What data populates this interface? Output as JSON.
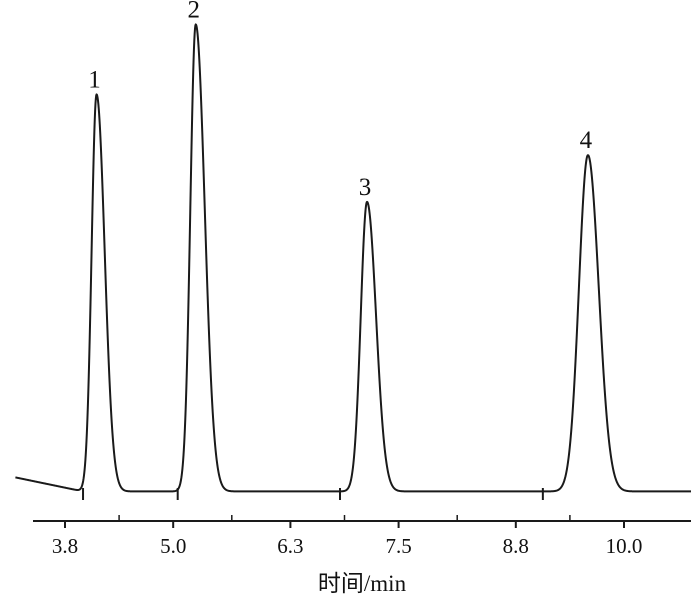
{
  "chart_data": {
    "type": "line",
    "title": "",
    "xlabel": "时间/min",
    "ylabel": "",
    "xticks": [
      3.8,
      5.0,
      6.3,
      7.5,
      8.8,
      10.0
    ],
    "xtick_labels": [
      "3.8",
      "5.0",
      "6.3",
      "7.5",
      "8.8",
      "10.0"
    ],
    "xlim": [
      3.5,
      11.2
    ],
    "ylim": [
      0,
      1.0
    ],
    "grid": false,
    "line_color": "#1a1a1a",
    "baseline": 0.012,
    "peaks": [
      {
        "label": "1",
        "rt": 4.15,
        "height": 0.85,
        "rise": 0.055,
        "tail": 0.09
      },
      {
        "label": "2",
        "rt": 5.25,
        "height": 1.0,
        "rise": 0.06,
        "tail": 0.1
      },
      {
        "label": "3",
        "rt": 7.15,
        "height": 0.62,
        "rise": 0.07,
        "tail": 0.1
      },
      {
        "label": "4",
        "rt": 9.6,
        "height": 0.72,
        "rise": 0.1,
        "tail": 0.12
      }
    ],
    "markers": [
      4.0,
      5.05,
      6.85,
      9.1
    ],
    "series": [
      {
        "x": [
          3.5,
          3.95,
          4.05,
          4.1,
          4.15,
          4.2,
          4.3,
          4.5,
          5.1,
          5.2,
          5.25,
          5.3,
          5.4,
          5.6,
          7.0,
          7.1,
          7.15,
          7.2,
          7.3,
          7.5,
          9.3,
          9.5,
          9.6,
          9.7,
          9.85,
          10.2,
          11.2
        ],
        "values": [
          0.02,
          0.012,
          0.3,
          0.76,
          0.85,
          0.6,
          0.15,
          0.03,
          0.05,
          0.72,
          1.0,
          0.75,
          0.2,
          0.02,
          0.04,
          0.45,
          0.62,
          0.45,
          0.12,
          0.015,
          0.03,
          0.55,
          0.72,
          0.6,
          0.22,
          0.015,
          0.012
        ]
      }
    ]
  }
}
